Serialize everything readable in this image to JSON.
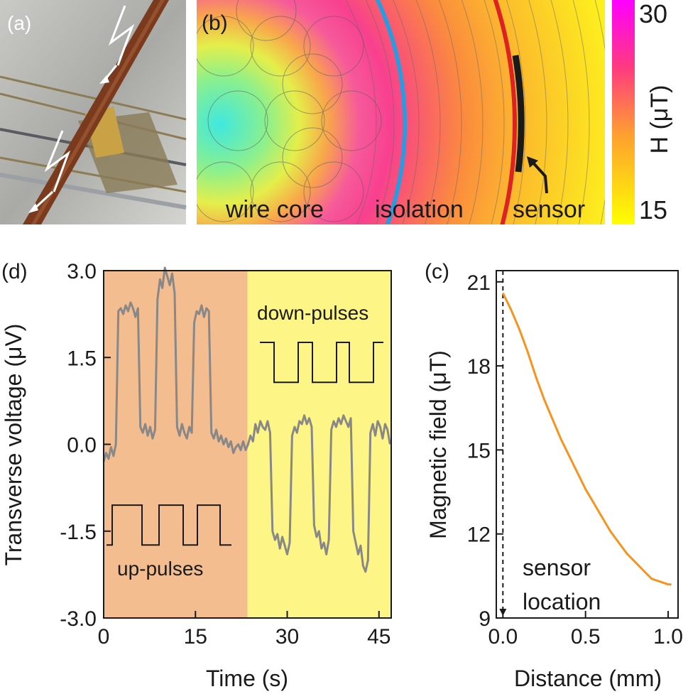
{
  "panel_labels": {
    "a": "(a)",
    "b": "(b)",
    "c": "(c)",
    "d": "(d)"
  },
  "panel_b": {
    "region_labels": [
      "wire core",
      "isolation",
      "sensor"
    ],
    "colorbar": {
      "label": "H (μT)",
      "max": "30",
      "min": "15",
      "max_value": 30,
      "min_value": 15
    }
  },
  "colors": {
    "up_region": "#f4bd8f",
    "down_region": "#fdf586",
    "signal": "#888888",
    "curve": "#f7941d",
    "isolation_boundary": "#2b9be0",
    "sensor_boundary": "#dd2222"
  },
  "chart_data": [
    {
      "id": "d",
      "type": "line",
      "xlabel": "Time (s)",
      "ylabel": "Transverse voltage (μV)",
      "xlim": [
        0,
        47
      ],
      "ylim": [
        -3.0,
        3.0
      ],
      "xticks": [
        "0",
        "15",
        "30",
        "45"
      ],
      "xtick_values": [
        0,
        15,
        30,
        45
      ],
      "yticks": [
        "3.0",
        "1.5",
        "0.0",
        "-1.5",
        "-3.0"
      ],
      "ytick_values": [
        3.0,
        1.5,
        0.0,
        -1.5,
        -3.0
      ],
      "regions": [
        {
          "name": "up-pulses",
          "from": 0,
          "to": 23.5
        },
        {
          "name": "down-pulses",
          "from": 23.5,
          "to": 47
        }
      ],
      "annotations": [
        "up-pulses",
        "down-pulses"
      ],
      "series": [
        {
          "name": "transverse voltage",
          "x": [
            0,
            0.4,
            0.8,
            1.2,
            1.6,
            2.0,
            2.4,
            2.8,
            3.2,
            3.6,
            4.0,
            4.4,
            4.8,
            5.2,
            5.6,
            6.0,
            6.4,
            6.8,
            7.2,
            7.6,
            8.0,
            8.4,
            8.8,
            9.2,
            9.6,
            10.0,
            10.4,
            10.8,
            11.2,
            11.6,
            12.0,
            12.4,
            12.8,
            13.2,
            13.6,
            14.0,
            14.4,
            14.8,
            15.2,
            15.6,
            16.0,
            16.4,
            16.8,
            17.2,
            17.6,
            18.0,
            18.4,
            18.8,
            19.2,
            19.6,
            20.0,
            20.4,
            20.8,
            21.2,
            21.6,
            22.0,
            22.4,
            22.8,
            23.2,
            23.6,
            24.0,
            24.4,
            24.8,
            25.2,
            25.6,
            26.0,
            26.4,
            26.8,
            27.2,
            27.6,
            28.0,
            28.4,
            28.8,
            29.2,
            29.6,
            30.0,
            30.4,
            30.8,
            31.2,
            31.6,
            32.0,
            32.4,
            32.8,
            33.2,
            33.6,
            34.0,
            34.4,
            34.8,
            35.2,
            35.6,
            36.0,
            36.4,
            36.8,
            37.2,
            37.6,
            38.0,
            38.4,
            38.8,
            39.2,
            39.6,
            40.0,
            40.4,
            40.8,
            41.2,
            41.6,
            42.0,
            42.4,
            42.8,
            43.2,
            43.6,
            44.0,
            44.4,
            44.8,
            45.2,
            45.6,
            46.0,
            46.4,
            46.8
          ],
          "values": [
            -0.3,
            -0.15,
            -0.25,
            -0.05,
            -0.2,
            0.0,
            2.3,
            2.35,
            2.25,
            2.4,
            2.3,
            2.45,
            2.35,
            2.2,
            2.35,
            0.3,
            0.2,
            0.35,
            0.15,
            0.3,
            0.1,
            0.25,
            2.5,
            2.85,
            2.7,
            3.05,
            2.9,
            2.75,
            2.95,
            2.6,
            0.3,
            0.15,
            0.35,
            0.2,
            0.1,
            0.3,
            0.2,
            2.1,
            2.3,
            2.25,
            2.4,
            2.2,
            2.35,
            2.3,
            0.2,
            0.1,
            0.25,
            0.05,
            0.15,
            0.0,
            0.1,
            -0.05,
            0.05,
            -0.15,
            -0.05,
            0.0,
            -0.1,
            0.05,
            -0.1,
            0.0,
            0.15,
            0.05,
            0.35,
            0.2,
            0.4,
            0.3,
            0.25,
            0.4,
            0.2,
            -1.5,
            -1.65,
            -1.55,
            -1.8,
            -1.6,
            -1.75,
            -1.9,
            -1.7,
            0.15,
            0.3,
            0.2,
            0.4,
            0.35,
            0.5,
            0.35,
            0.45,
            0.3,
            -1.4,
            -1.6,
            -1.5,
            -1.8,
            -1.7,
            -1.9,
            -1.65,
            0.25,
            0.4,
            0.3,
            0.45,
            0.35,
            0.5,
            0.4,
            0.3,
            0.45,
            -1.5,
            -1.7,
            -1.9,
            -1.75,
            -2.1,
            -2.2,
            -2.0,
            0.2,
            0.35,
            0.15,
            0.4,
            0.3,
            0.1,
            0.35,
            0.25,
            0.0
          ]
        }
      ],
      "pulse_trains": [
        {
          "name": "up-pulses",
          "low": -1.74,
          "high": -1.05,
          "time_scale": "schematic"
        },
        {
          "name": "down-pulses",
          "low": 1.07,
          "high": 1.76,
          "time_scale": "schematic"
        }
      ]
    },
    {
      "id": "c",
      "type": "line",
      "xlabel": "Distance (mm)",
      "ylabel": "Magnetic field (μT)",
      "xlim": [
        -0.04,
        1.06
      ],
      "ylim": [
        9,
        21.4
      ],
      "xticks": [
        "0.0",
        "0.5",
        "1.0"
      ],
      "xtick_values": [
        0.0,
        0.5,
        1.0
      ],
      "yticks": [
        "21",
        "18",
        "15",
        "12",
        "9"
      ],
      "ytick_values": [
        21,
        18,
        15,
        12,
        9
      ],
      "annotations": [
        "sensor",
        "location"
      ],
      "marker_line_x": 0.0,
      "series": [
        {
          "name": "magnetic field",
          "x": [
            0.0,
            0.05,
            0.1,
            0.15,
            0.2,
            0.25,
            0.3,
            0.35,
            0.4,
            0.45,
            0.5,
            0.55,
            0.6,
            0.65,
            0.7,
            0.75,
            0.8,
            0.85,
            0.9,
            0.95,
            1.0,
            1.02
          ],
          "values": [
            20.6,
            20.0,
            19.3,
            18.5,
            17.6,
            16.8,
            16.1,
            15.4,
            14.8,
            14.2,
            13.6,
            13.1,
            12.6,
            12.1,
            11.7,
            11.3,
            11.0,
            10.7,
            10.4,
            10.3,
            10.2,
            10.2
          ]
        }
      ]
    }
  ]
}
